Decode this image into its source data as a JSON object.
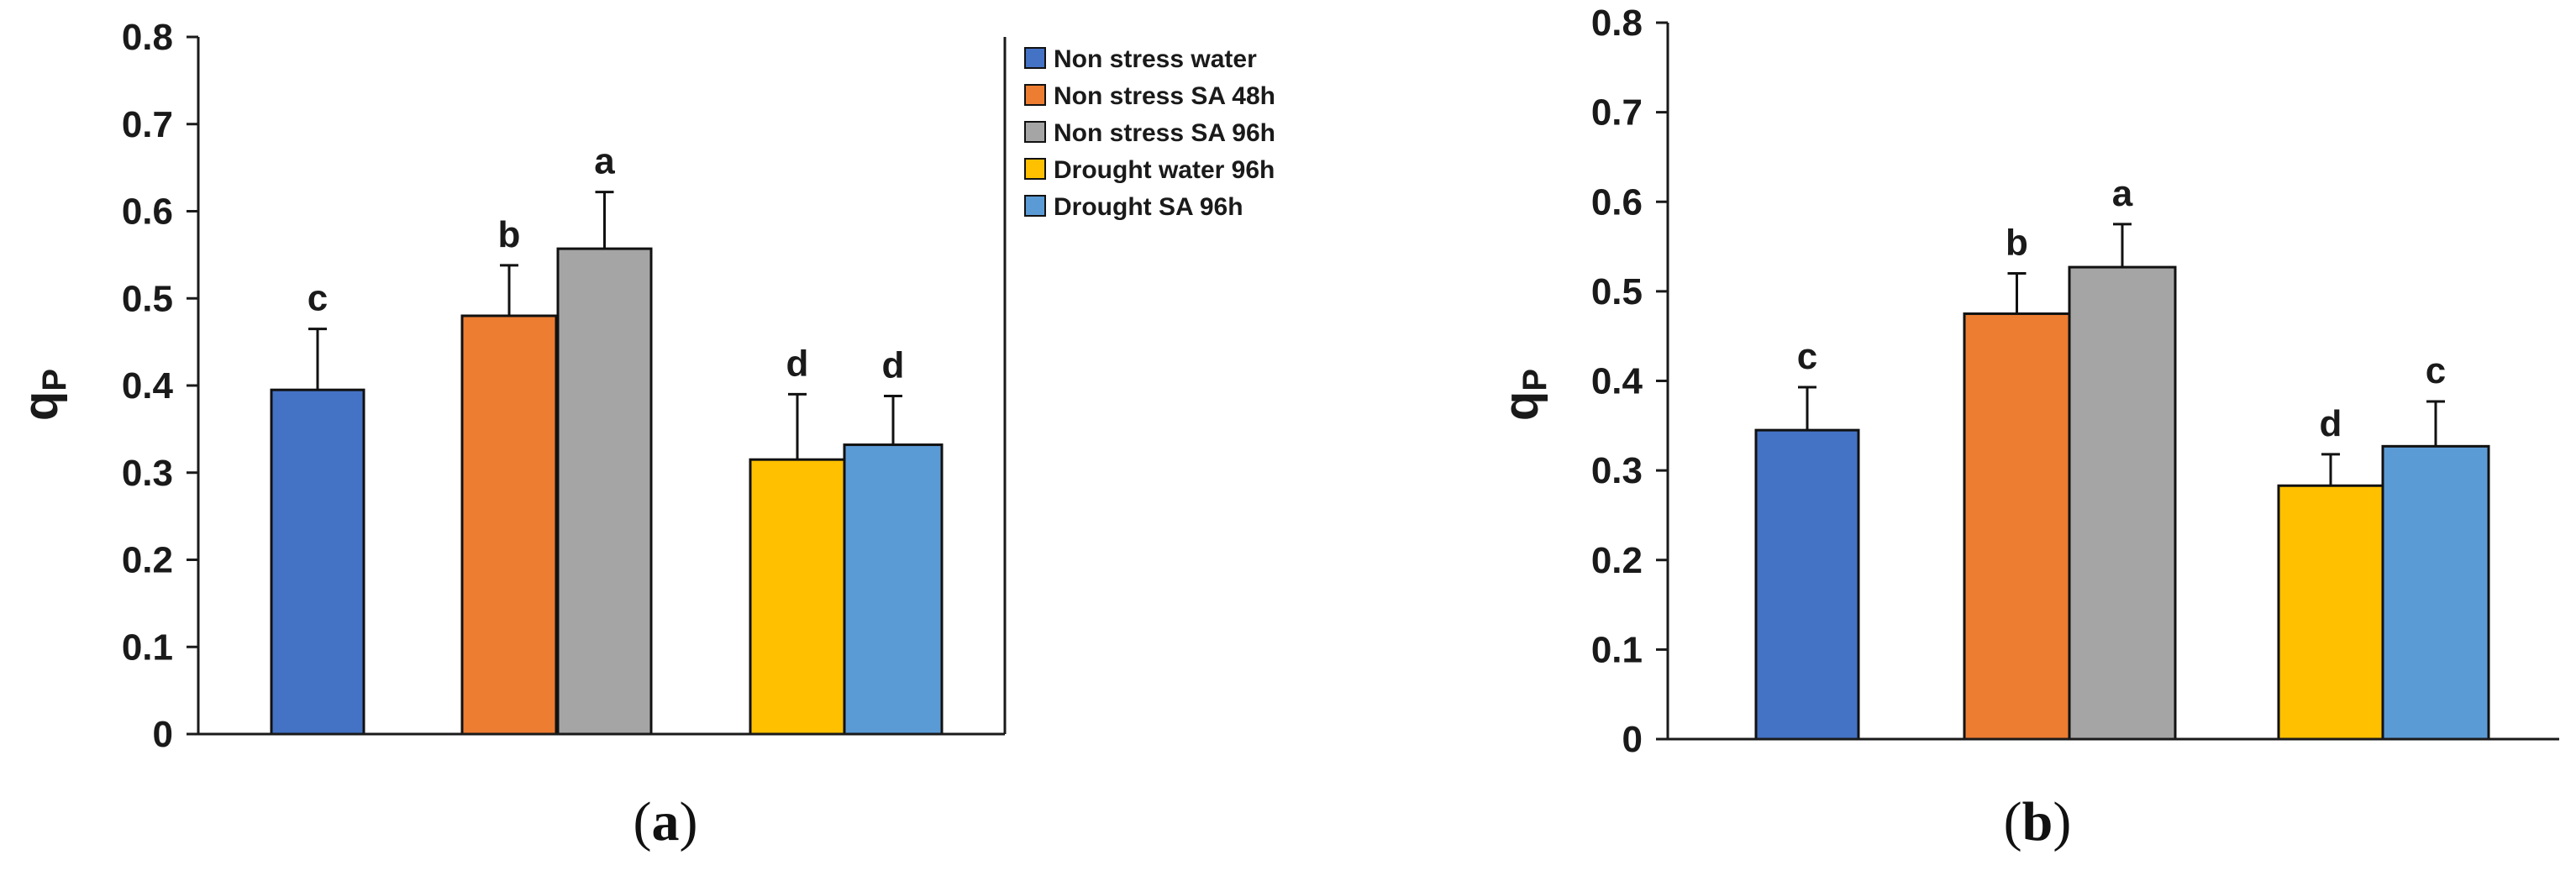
{
  "colors": {
    "series": [
      "#4472C4",
      "#ED7D31",
      "#A5A5A5",
      "#FFC000",
      "#5B9BD5"
    ],
    "axis": "#1a1a1a",
    "bar_stroke": "#111111"
  },
  "legend": {
    "entries": [
      "Non stress water",
      "Non stress SA 48h",
      "Non stress SA 96h",
      "Drought water 96h",
      "Drought SA 96h"
    ]
  },
  "chart_data": [
    {
      "type": "bar",
      "panel": "a",
      "caption": "(a)",
      "caption_open": "(",
      "caption_letter": "a",
      "caption_close": ")",
      "ylabel_main": "q",
      "ylabel_sub": "P",
      "ylim": [
        0,
        0.8
      ],
      "yticks": [
        "0",
        "0.1",
        "0.2",
        "0.3",
        "0.4",
        "0.5",
        "0.6",
        "0.7",
        "0.8"
      ],
      "legend_position": "right",
      "series": [
        {
          "name": "Non stress water",
          "value": 0.395,
          "error": 0.07,
          "letter": "c"
        },
        {
          "name": "Non stress SA 48h",
          "value": 0.48,
          "error": 0.058,
          "letter": "b"
        },
        {
          "name": "Non stress SA 96h",
          "value": 0.557,
          "error": 0.065,
          "letter": "a"
        },
        {
          "name": "Drought water 96h",
          "value": 0.315,
          "error": 0.075,
          "letter": "d"
        },
        {
          "name": "Drought SA 96h",
          "value": 0.332,
          "error": 0.056,
          "letter": "d"
        }
      ]
    },
    {
      "type": "bar",
      "panel": "b",
      "caption": "(b)",
      "caption_open": "(",
      "caption_letter": "b",
      "caption_close": ")",
      "ylabel_main": "q",
      "ylabel_sub": "P",
      "ylim": [
        0,
        0.8
      ],
      "yticks": [
        "0",
        "0.1",
        "0.2",
        "0.3",
        "0.4",
        "0.5",
        "0.6",
        "0.7",
        "0.8"
      ],
      "legend_position": "none",
      "series": [
        {
          "name": "Non stress water",
          "value": 0.345,
          "error": 0.048,
          "letter": "c"
        },
        {
          "name": "Non stress SA 48h",
          "value": 0.475,
          "error": 0.045,
          "letter": "b"
        },
        {
          "name": "Non stress SA 96h",
          "value": 0.527,
          "error": 0.048,
          "letter": "a"
        },
        {
          "name": "Drought water 96h",
          "value": 0.283,
          "error": 0.035,
          "letter": "d"
        },
        {
          "name": "Drought SA 96h",
          "value": 0.327,
          "error": 0.05,
          "letter": "c"
        }
      ]
    }
  ]
}
